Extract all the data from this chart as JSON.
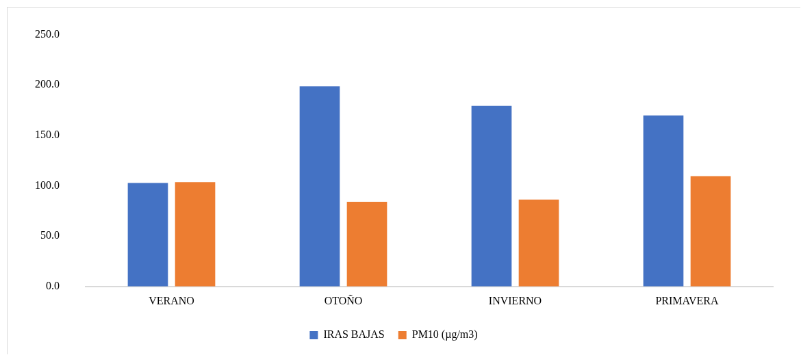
{
  "chart_data": {
    "type": "bar",
    "categories": [
      "VERANO",
      "OTOÑO",
      "INVIERNO",
      "PRIMAVERA"
    ],
    "series": [
      {
        "name": "IRAS BAJAS",
        "color": "#4472c4",
        "values": [
          102.7,
          198.6,
          179.3,
          169.8
        ]
      },
      {
        "name": "PM10 (µg/m3)",
        "color": "#ed7d31",
        "values": [
          103.6,
          84.0,
          86.3,
          109.5
        ]
      }
    ],
    "ylim": [
      0,
      250
    ],
    "yticks": [
      {
        "value": 0,
        "label": "0.0"
      },
      {
        "value": 50,
        "label": "50.0"
      },
      {
        "value": 100,
        "label": "100.0"
      },
      {
        "value": 150,
        "label": "150.0"
      },
      {
        "value": 200,
        "label": "200.0"
      },
      {
        "value": 250,
        "label": "250.0"
      }
    ],
    "grid": false,
    "legend": "bottom"
  }
}
